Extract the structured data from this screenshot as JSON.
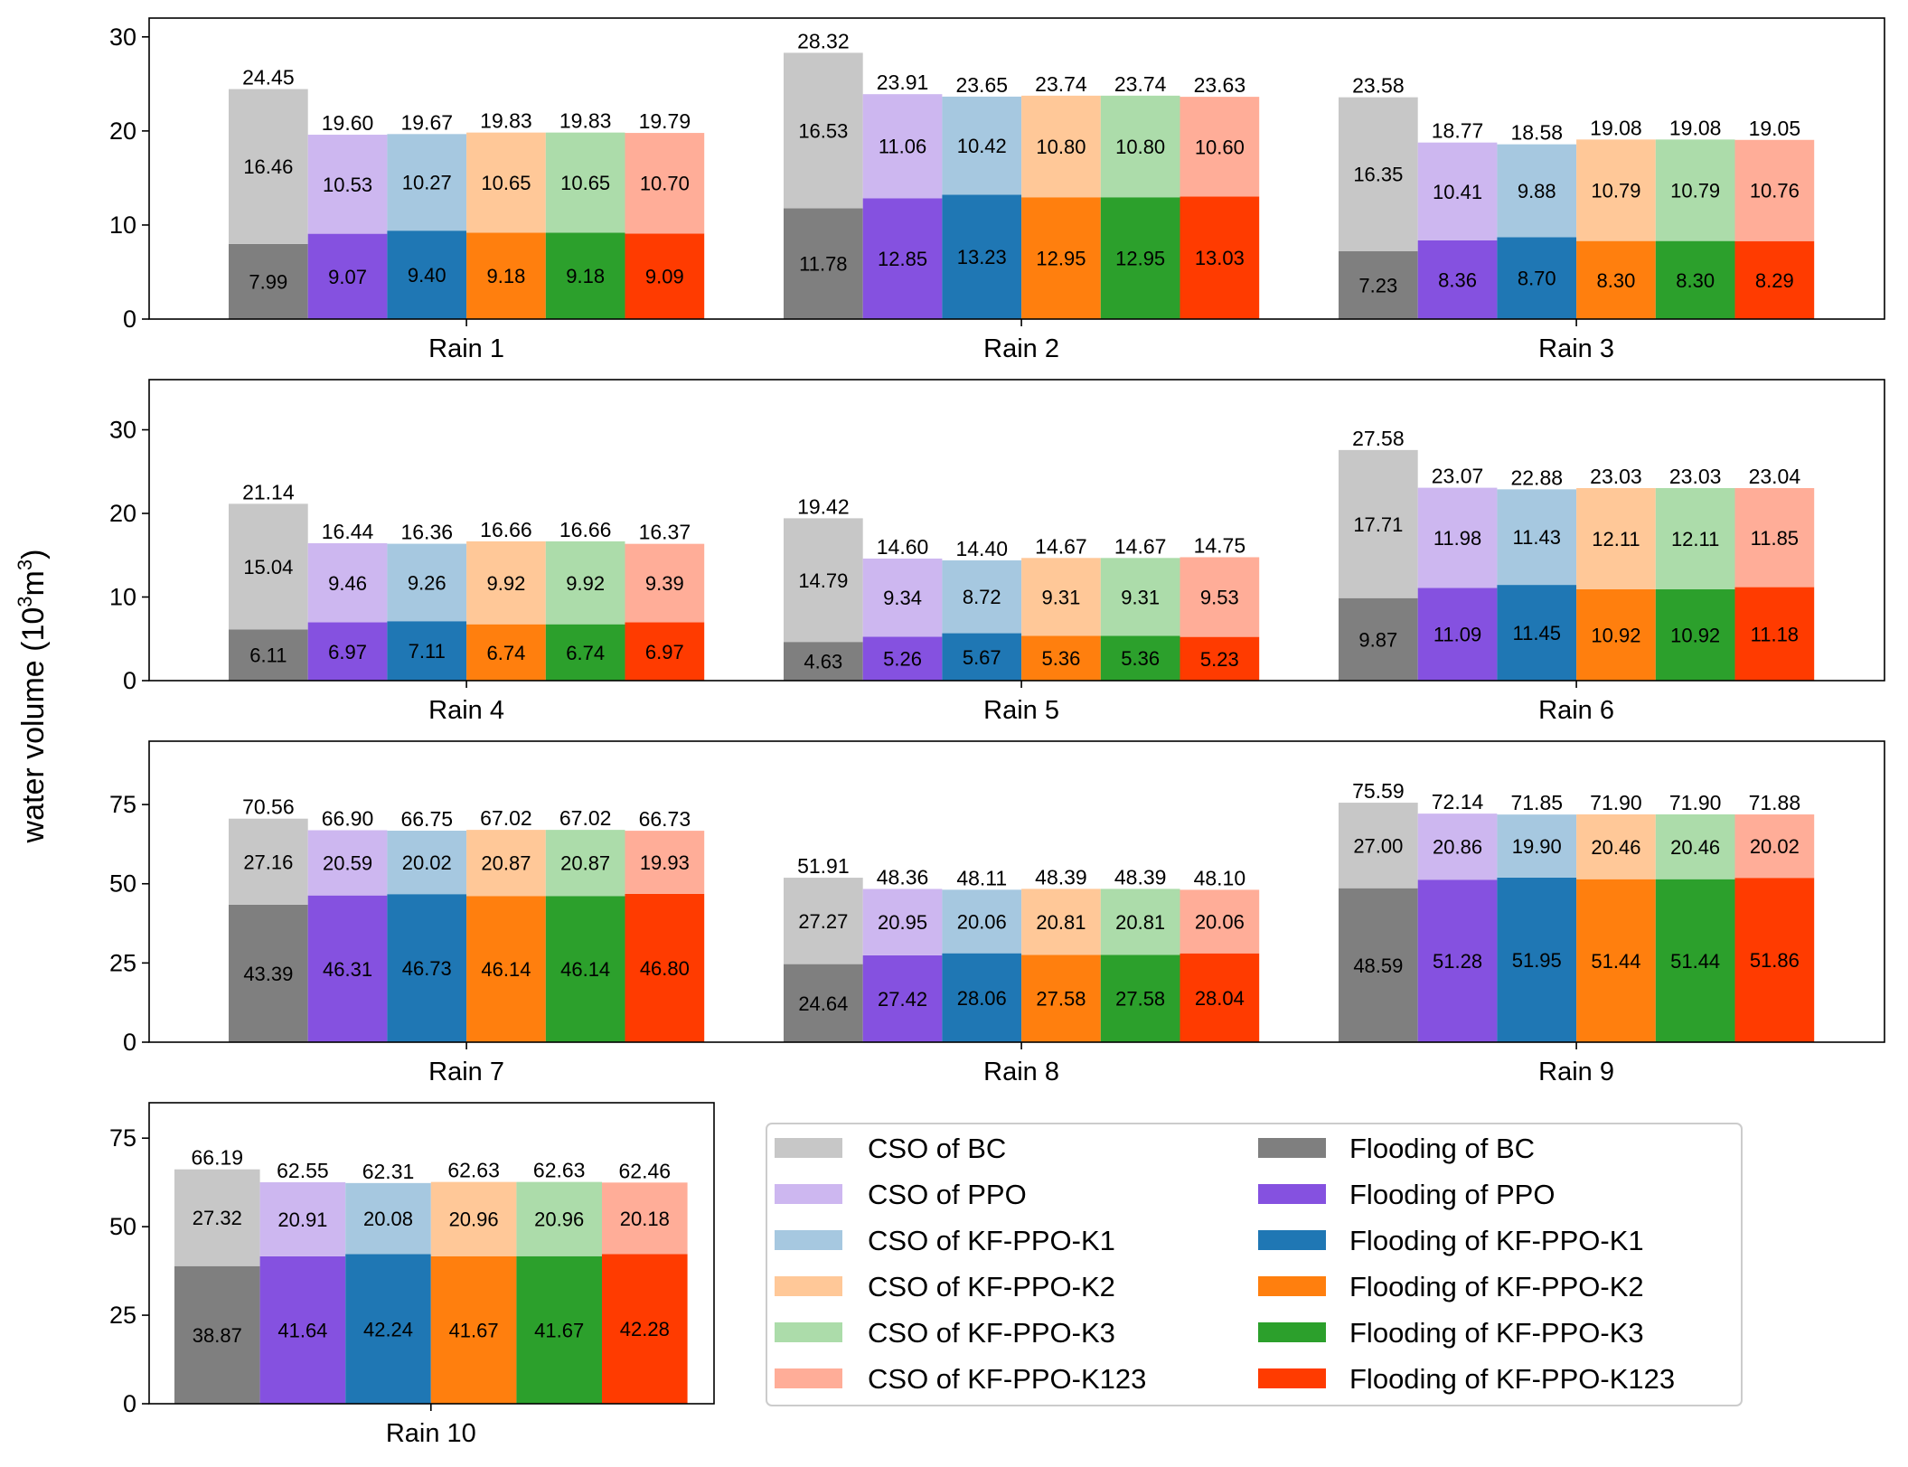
{
  "chart_data": {
    "type": "bar",
    "stacked": true,
    "ylabel": {
      "text": "water volume (10",
      "sup1": "3",
      "mid": "m",
      "sup2": "3",
      "end": ")"
    },
    "groups": [
      "BC",
      "PPO",
      "KF-PPO-K1",
      "KF-PPO-K2",
      "KF-PPO-K3",
      "KF-PPO-K123"
    ],
    "colors": {
      "flooding": [
        "#7f7f7f",
        "#8551e0",
        "#1f77b4",
        "#ff7f0e",
        "#2ca02c",
        "#ff3b00"
      ],
      "cso": [
        "#c7c7c7",
        "#cdb7f0",
        "#a6c8e0",
        "#ffc898",
        "#acdcaa",
        "#ffad98"
      ]
    },
    "legend": {
      "position": "bottom-right",
      "cso": [
        "CSO of BC",
        "CSO of PPO",
        "CSO of KF-PPO-K1",
        "CSO of KF-PPO-K2",
        "CSO of KF-PPO-K3",
        "CSO of KF-PPO-K123"
      ],
      "flooding": [
        "Flooding of BC",
        "Flooding of PPO",
        "Flooding of KF-PPO-K1",
        "Flooding of KF-PPO-K2",
        "Flooding of KF-PPO-K3",
        "Flooding of KF-PPO-K123"
      ]
    },
    "panels": [
      {
        "ylim": [
          0,
          32
        ],
        "yticks": [
          0,
          10,
          20,
          30
        ],
        "rains": [
          {
            "name": "Rain 1",
            "flooding": [
              7.99,
              9.07,
              9.4,
              9.18,
              9.18,
              9.09
            ],
            "cso": [
              16.46,
              10.53,
              10.27,
              10.65,
              10.65,
              10.7
            ],
            "total": [
              24.45,
              19.6,
              19.67,
              19.83,
              19.83,
              19.79
            ]
          },
          {
            "name": "Rain 2",
            "flooding": [
              11.78,
              12.85,
              13.23,
              12.95,
              12.95,
              13.03
            ],
            "cso": [
              16.53,
              11.06,
              10.42,
              10.8,
              10.8,
              10.6
            ],
            "total": [
              28.32,
              23.91,
              23.65,
              23.74,
              23.74,
              23.63
            ]
          },
          {
            "name": "Rain 3",
            "flooding": [
              7.23,
              8.36,
              8.7,
              8.3,
              8.3,
              8.29
            ],
            "cso": [
              16.35,
              10.41,
              9.88,
              10.79,
              10.79,
              10.76
            ],
            "total": [
              23.58,
              18.77,
              18.58,
              19.08,
              19.08,
              19.05
            ]
          }
        ]
      },
      {
        "ylim": [
          0,
          36
        ],
        "yticks": [
          0,
          10,
          20,
          30
        ],
        "rains": [
          {
            "name": "Rain 4",
            "flooding": [
              6.11,
              6.97,
              7.11,
              6.74,
              6.74,
              6.97
            ],
            "cso": [
              15.04,
              9.46,
              9.26,
              9.92,
              9.92,
              9.39
            ],
            "total": [
              21.14,
              16.44,
              16.36,
              16.66,
              16.66,
              16.37
            ]
          },
          {
            "name": "Rain 5",
            "flooding": [
              4.63,
              5.26,
              5.67,
              5.36,
              5.36,
              5.23
            ],
            "cso": [
              14.79,
              9.34,
              8.72,
              9.31,
              9.31,
              9.53
            ],
            "total": [
              19.42,
              14.6,
              14.4,
              14.67,
              14.67,
              14.75
            ]
          },
          {
            "name": "Rain 6",
            "flooding": [
              9.87,
              11.09,
              11.45,
              10.92,
              10.92,
              11.18
            ],
            "cso": [
              17.71,
              11.98,
              11.43,
              12.11,
              12.11,
              11.85
            ],
            "total": [
              27.58,
              23.07,
              22.88,
              23.03,
              23.03,
              23.04
            ]
          }
        ]
      },
      {
        "ylim": [
          0,
          95
        ],
        "yticks": [
          0,
          25,
          50,
          75
        ],
        "rains": [
          {
            "name": "Rain 7",
            "flooding": [
              43.39,
              46.31,
              46.73,
              46.14,
              46.14,
              46.8
            ],
            "cso": [
              27.16,
              20.59,
              20.02,
              20.87,
              20.87,
              19.93
            ],
            "total": [
              70.56,
              66.9,
              66.75,
              67.02,
              67.02,
              66.73
            ]
          },
          {
            "name": "Rain 8",
            "flooding": [
              24.64,
              27.42,
              28.06,
              27.58,
              27.58,
              28.04
            ],
            "cso": [
              27.27,
              20.95,
              20.06,
              20.81,
              20.81,
              20.06
            ],
            "total": [
              51.91,
              48.36,
              48.11,
              48.39,
              48.39,
              48.1
            ]
          },
          {
            "name": "Rain 9",
            "flooding": [
              48.59,
              51.28,
              51.95,
              51.44,
              51.44,
              51.86
            ],
            "cso": [
              27.0,
              20.86,
              19.9,
              20.46,
              20.46,
              20.02
            ],
            "total": [
              75.59,
              72.14,
              71.85,
              71.9,
              71.9,
              71.88
            ]
          }
        ]
      },
      {
        "ylim": [
          0,
          85
        ],
        "yticks": [
          0,
          25,
          50,
          75
        ],
        "rains": [
          {
            "name": "Rain 10",
            "flooding": [
              38.87,
              41.64,
              42.24,
              41.67,
              41.67,
              42.28
            ],
            "cso": [
              27.32,
              20.91,
              20.08,
              20.96,
              20.96,
              20.18
            ],
            "total": [
              66.19,
              62.55,
              62.31,
              62.63,
              62.63,
              62.46
            ]
          }
        ]
      }
    ]
  }
}
